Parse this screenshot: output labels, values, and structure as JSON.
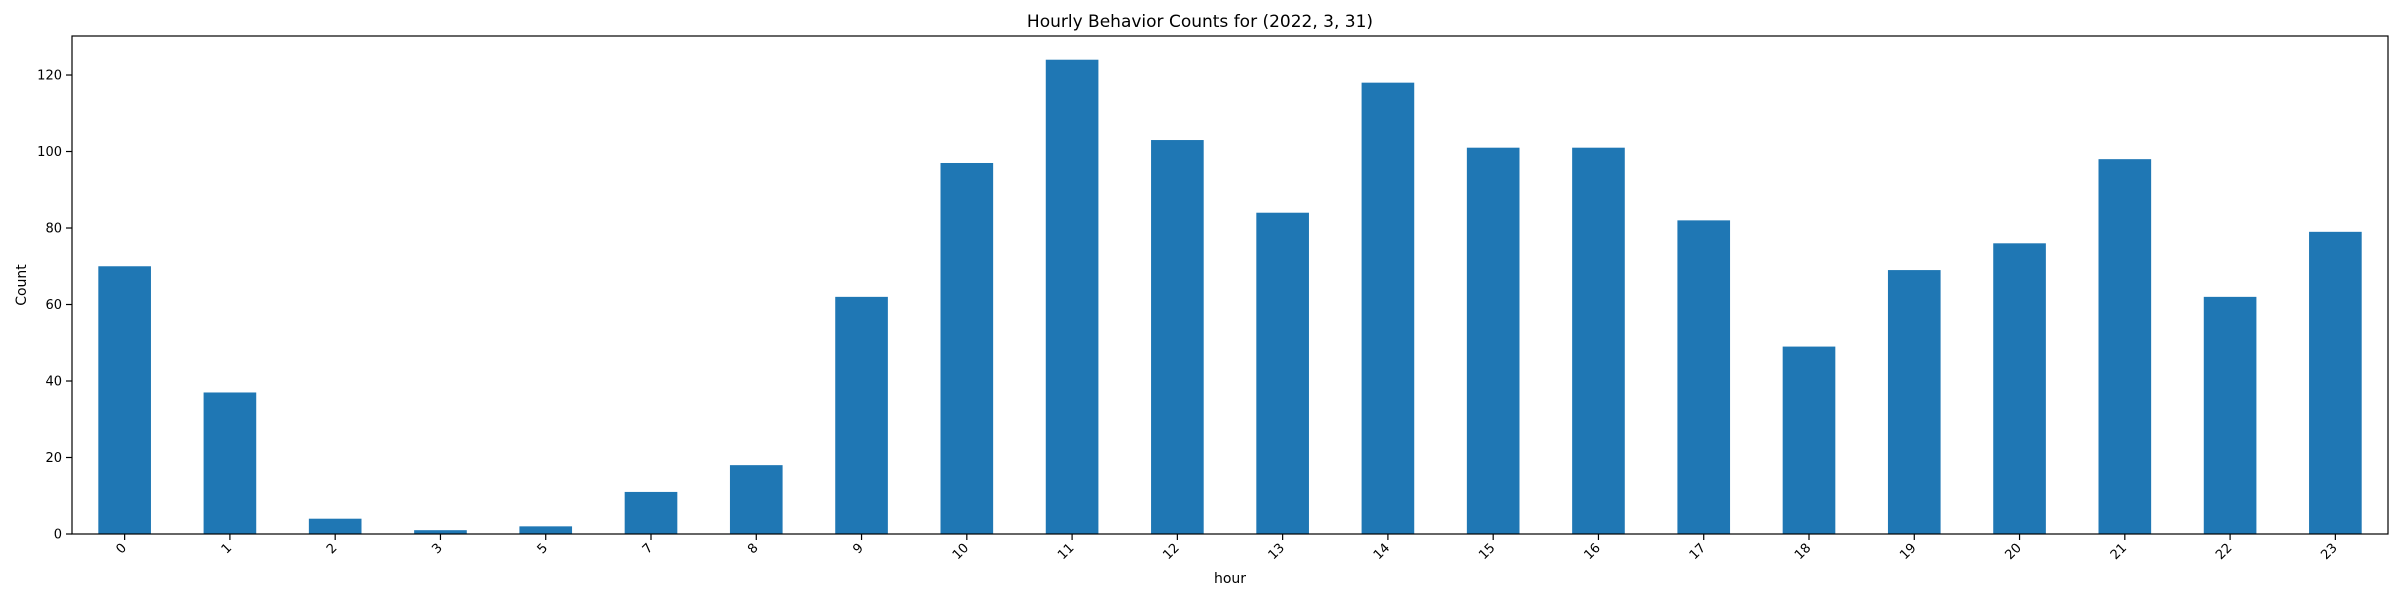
{
  "chart_data": {
    "type": "bar",
    "title": "Hourly Behavior Counts for (2022, 3, 31)",
    "xlabel": "hour",
    "ylabel": "Count",
    "categories": [
      "0",
      "1",
      "2",
      "3",
      "5",
      "7",
      "8",
      "9",
      "10",
      "11",
      "12",
      "13",
      "14",
      "15",
      "16",
      "17",
      "18",
      "19",
      "20",
      "21",
      "22",
      "23"
    ],
    "values": [
      70,
      37,
      4,
      1,
      2,
      11,
      18,
      62,
      97,
      124,
      103,
      84,
      118,
      101,
      101,
      82,
      49,
      69,
      76,
      98,
      62,
      79
    ],
    "ylim": [
      0,
      130.2
    ],
    "yticks": [
      0,
      20,
      40,
      60,
      80,
      100,
      120
    ],
    "bar_color": "#1f77b4",
    "grid": false,
    "legend": false
  }
}
